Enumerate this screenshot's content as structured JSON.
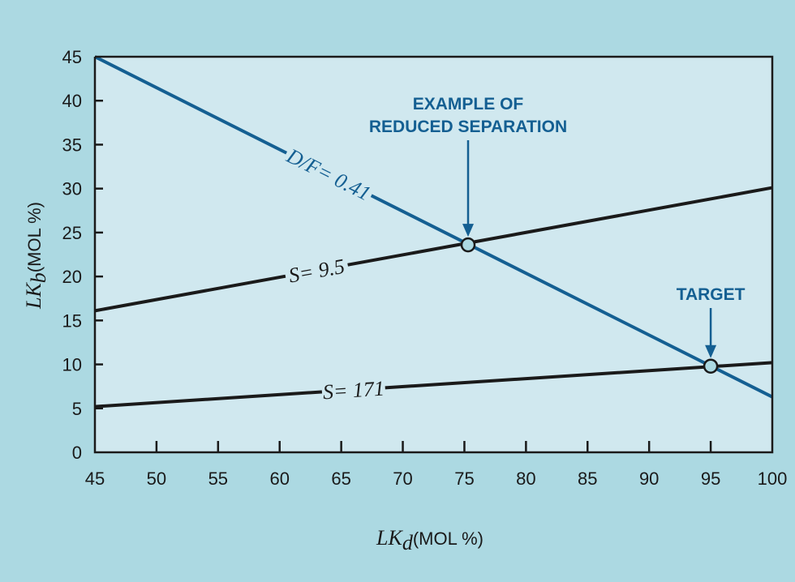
{
  "chart_data": {
    "type": "line",
    "title": "",
    "xlabel": {
      "var": "LK",
      "sub": "d",
      "unit": "(MOL %)"
    },
    "ylabel": {
      "var": "LK",
      "sub": "b",
      "unit": "(MOL %)"
    },
    "xlim": [
      45,
      100
    ],
    "ylim": [
      0,
      45
    ],
    "xticks": [
      45,
      50,
      55,
      60,
      65,
      70,
      75,
      80,
      85,
      90,
      95,
      100
    ],
    "yticks": [
      0,
      5,
      10,
      15,
      20,
      25,
      30,
      35,
      40,
      45
    ],
    "grid": false,
    "series": [
      {
        "name": "D/F= 0.41",
        "color": "#145f92",
        "x": [
          45,
          100
        ],
        "y": [
          45,
          6.3
        ],
        "label_at": 64
      },
      {
        "name": "S= 9.5",
        "color": "#1a1a1a",
        "x": [
          45,
          100
        ],
        "y": [
          16.1,
          30.1
        ],
        "label_at": 63
      },
      {
        "name": "S= 171",
        "color": "#1a1a1a",
        "x": [
          45,
          100
        ],
        "y": [
          5.2,
          10.2
        ],
        "label_at": 66
      }
    ],
    "points": [
      {
        "name": "reduced-separation",
        "x": 75.3,
        "y": 23.6
      },
      {
        "name": "target",
        "x": 95,
        "y": 9.8
      }
    ],
    "annotations": [
      {
        "lines": [
          "EXAMPLE OF",
          "REDUCED SEPARATION"
        ],
        "x": 75.3,
        "y": 23.6
      },
      {
        "lines": [
          "TARGET"
        ],
        "x": 95,
        "y": 9.8
      }
    ],
    "colors": {
      "background": "#acd9e2",
      "plot": "#d0e8ef",
      "accent": "#145f92"
    }
  }
}
